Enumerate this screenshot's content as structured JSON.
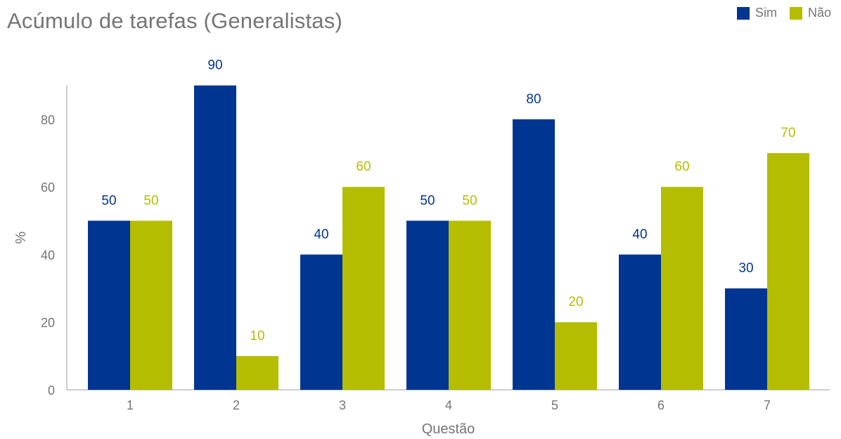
{
  "chart_data": {
    "type": "bar",
    "title": "Acúmulo de tarefas (Generalistas)",
    "xlabel": "Questão",
    "ylabel": "%",
    "categories": [
      "1",
      "2",
      "3",
      "4",
      "5",
      "6",
      "7"
    ],
    "series": [
      {
        "name": "Sim",
        "color": "#003591",
        "values": [
          50,
          90,
          40,
          50,
          80,
          40,
          30
        ]
      },
      {
        "name": "Não",
        "color": "#b5bd00",
        "values": [
          50,
          10,
          60,
          50,
          20,
          60,
          70
        ]
      }
    ],
    "ylim": [
      0,
      90
    ],
    "yticks": [
      0,
      20,
      40,
      60,
      80
    ],
    "grid": false,
    "legend_position": "top-right",
    "data_labels": true,
    "colors": {
      "axis": "#bdbdbd",
      "text": "#757575"
    }
  }
}
